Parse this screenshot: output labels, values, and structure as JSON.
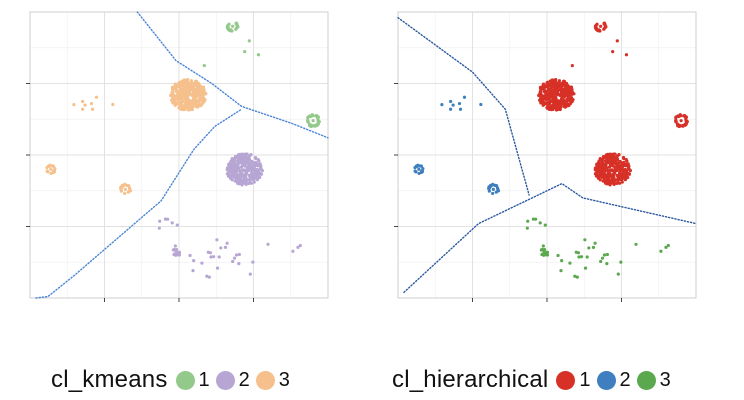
{
  "chart_data": [
    {
      "type": "scatter",
      "panel": "kmeans",
      "title": "",
      "xlabel": "",
      "ylabel": "",
      "xlim": [
        0,
        10
      ],
      "ylim": [
        0,
        10
      ],
      "grid": true,
      "legend": {
        "title": "cl_kmeans",
        "position": "bottom",
        "labels": [
          "1",
          "2",
          "3"
        ]
      },
      "colors": {
        "1": "#93c98a",
        "2": "#b7a6d3",
        "3": "#f5c08c"
      },
      "boundary_color": "#4a86d4",
      "clusters": [
        {
          "label": "3",
          "cx": 5.3,
          "cy": 7.1,
          "spread": 0.55,
          "n": 320,
          "shape": "blob"
        },
        {
          "label": "2",
          "cx": 7.2,
          "cy": 4.5,
          "spread": 0.55,
          "n": 300,
          "shape": "blob"
        },
        {
          "label": "1",
          "cx": 9.5,
          "cy": 6.2,
          "spread": 0.22,
          "n": 40,
          "shape": "ring"
        },
        {
          "label": "1",
          "cx": 6.8,
          "cy": 9.5,
          "spread": 0.18,
          "n": 25,
          "shape": "ring"
        },
        {
          "label": "3",
          "cx": 0.7,
          "cy": 4.5,
          "spread": 0.15,
          "n": 18,
          "shape": "ring"
        },
        {
          "label": "3",
          "cx": 3.2,
          "cy": 3.8,
          "spread": 0.18,
          "n": 22,
          "shape": "ring"
        },
        {
          "label": "2",
          "cx": 4.9,
          "cy": 1.6,
          "spread": 0.12,
          "n": 12,
          "shape": "ring"
        },
        {
          "label": "3",
          "cx": 1.9,
          "cy": 6.8,
          "spread": 0.35,
          "n": 8,
          "shape": "sparse"
        },
        {
          "label": "2",
          "cx": 6.3,
          "cy": 1.4,
          "spread": 0.7,
          "n": 26,
          "shape": "sparse"
        },
        {
          "label": "2",
          "cx": 4.6,
          "cy": 2.6,
          "spread": 0.25,
          "n": 6,
          "shape": "sparse"
        },
        {
          "label": "2",
          "cx": 9.0,
          "cy": 1.8,
          "spread": 0.15,
          "n": 3,
          "shape": "sparse"
        },
        {
          "label": "1",
          "cx": 7.3,
          "cy": 8.6,
          "spread": 0.4,
          "n": 3,
          "shape": "sparse"
        },
        {
          "label": "1",
          "cx": 5.8,
          "cy": 8.1,
          "spread": 0.1,
          "n": 1,
          "shape": "sparse"
        }
      ],
      "boundaries": [
        [
          [
            3.6,
            10.0
          ],
          [
            4.9,
            8.3
          ],
          [
            6.1,
            7.5
          ],
          [
            7.1,
            6.7
          ],
          [
            8.8,
            6.1
          ],
          [
            10.0,
            5.6
          ]
        ],
        [
          [
            0.2,
            0.0
          ],
          [
            0.6,
            0.05
          ],
          [
            1.5,
            0.8
          ],
          [
            4.4,
            3.4
          ],
          [
            5.5,
            5.2
          ],
          [
            6.2,
            6.0
          ],
          [
            7.1,
            6.6
          ]
        ]
      ]
    },
    {
      "type": "scatter",
      "panel": "hierarchical",
      "title": "",
      "xlabel": "",
      "ylabel": "",
      "xlim": [
        0,
        10
      ],
      "ylim": [
        0,
        10
      ],
      "grid": true,
      "legend": {
        "title": "cl_hierarchical",
        "position": "bottom",
        "labels": [
          "1",
          "2",
          "3"
        ]
      },
      "colors": {
        "1": "#d73027",
        "2": "#3f7fbf",
        "3": "#5ba84f"
      },
      "boundary_color": "#2b5aa0",
      "clusters": [
        {
          "label": "1",
          "cx": 5.3,
          "cy": 7.1,
          "spread": 0.55,
          "n": 320,
          "shape": "blob"
        },
        {
          "label": "1",
          "cx": 7.2,
          "cy": 4.5,
          "spread": 0.55,
          "n": 300,
          "shape": "blob"
        },
        {
          "label": "1",
          "cx": 9.5,
          "cy": 6.2,
          "spread": 0.22,
          "n": 40,
          "shape": "ring"
        },
        {
          "label": "1",
          "cx": 6.8,
          "cy": 9.5,
          "spread": 0.18,
          "n": 25,
          "shape": "ring"
        },
        {
          "label": "2",
          "cx": 0.7,
          "cy": 4.5,
          "spread": 0.15,
          "n": 18,
          "shape": "ring"
        },
        {
          "label": "2",
          "cx": 3.2,
          "cy": 3.8,
          "spread": 0.18,
          "n": 22,
          "shape": "ring"
        },
        {
          "label": "3",
          "cx": 4.9,
          "cy": 1.6,
          "spread": 0.12,
          "n": 12,
          "shape": "ring"
        },
        {
          "label": "2",
          "cx": 1.9,
          "cy": 6.8,
          "spread": 0.35,
          "n": 8,
          "shape": "sparse"
        },
        {
          "label": "3",
          "cx": 6.3,
          "cy": 1.4,
          "spread": 0.7,
          "n": 26,
          "shape": "sparse"
        },
        {
          "label": "3",
          "cx": 4.6,
          "cy": 2.6,
          "spread": 0.25,
          "n": 6,
          "shape": "sparse"
        },
        {
          "label": "3",
          "cx": 9.0,
          "cy": 1.8,
          "spread": 0.15,
          "n": 3,
          "shape": "sparse"
        },
        {
          "label": "1",
          "cx": 7.3,
          "cy": 8.6,
          "spread": 0.4,
          "n": 3,
          "shape": "sparse"
        },
        {
          "label": "1",
          "cx": 5.8,
          "cy": 8.1,
          "spread": 0.1,
          "n": 1,
          "shape": "sparse"
        }
      ],
      "boundaries": [
        [
          [
            0.0,
            9.8
          ],
          [
            2.5,
            7.9
          ],
          [
            3.6,
            6.6
          ],
          [
            4.4,
            3.6
          ]
        ],
        [
          [
            0.2,
            0.2
          ],
          [
            2.7,
            2.6
          ],
          [
            4.3,
            3.4
          ],
          [
            5.5,
            4.0
          ],
          [
            6.2,
            3.5
          ],
          [
            10.0,
            2.6
          ]
        ]
      ]
    }
  ]
}
